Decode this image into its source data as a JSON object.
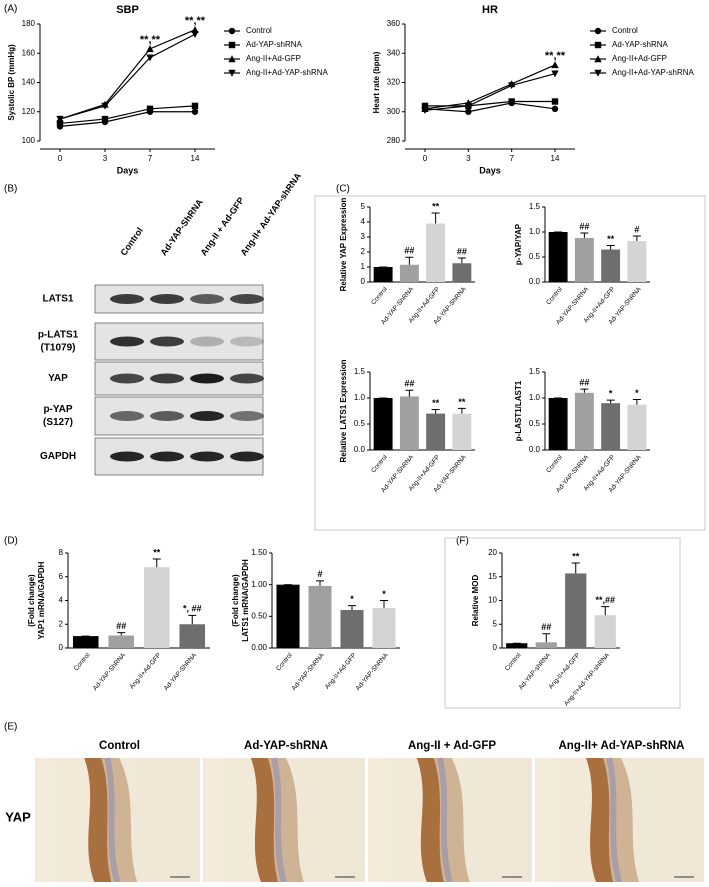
{
  "panels": {
    "A": "(A)",
    "B": "(B)",
    "C": "(C)",
    "D": "(D)",
    "E": "(E)",
    "F": "(F)"
  },
  "chart_data": [
    {
      "type": "line",
      "title": "SBP",
      "xlabel": "Days",
      "ylabel": [
        "Systolic BP (mmHg)"
      ],
      "categories": [
        "0",
        "3",
        "7",
        "14"
      ],
      "ylim": [
        100,
        180
      ],
      "yticks": [
        100,
        120,
        140,
        160,
        180
      ],
      "legend": "right",
      "labels": [
        null,
        null,
        "**,**",
        "**,**"
      ],
      "series": [
        {
          "name": "Control",
          "color": "#000000",
          "marker": "circle",
          "values": [
            110,
            113,
            120,
            120
          ]
        },
        {
          "name": "Ad-YAP-shRNA",
          "color": "#000000",
          "marker": "square",
          "values": [
            112,
            115,
            122,
            124
          ]
        },
        {
          "name": "Ang-II+Ad-GFP",
          "color": "#000000",
          "marker": "triangle-up",
          "values": [
            115,
            125,
            163,
            176
          ]
        },
        {
          "name": "Ang-II+Ad-YAP-shRNA",
          "color": "#000000",
          "marker": "triangle-down",
          "values": [
            115,
            124,
            157,
            173
          ]
        }
      ]
    },
    {
      "type": "line",
      "title": "HR",
      "xlabel": "Days",
      "ylabel": [
        "Heart rate (bpm)"
      ],
      "categories": [
        "0",
        "3",
        "7",
        "14"
      ],
      "ylim": [
        280,
        360
      ],
      "yticks": [
        280,
        300,
        320,
        340,
        360
      ],
      "legend": "right",
      "labels": [
        null,
        null,
        null,
        "**,**"
      ],
      "series": [
        {
          "name": "Control",
          "color": "#000000",
          "marker": "circle",
          "values": [
            302,
            300,
            306,
            302
          ]
        },
        {
          "name": "Ad-YAP-shRNA",
          "color": "#000000",
          "marker": "square",
          "values": [
            304,
            304,
            307,
            307
          ]
        },
        {
          "name": "Ang-II+Ad-GFP",
          "color": "#000000",
          "marker": "triangle-up",
          "values": [
            302,
            306,
            319,
            332
          ]
        },
        {
          "name": "Ang-II+Ad-YAP-shRNA",
          "color": "#000000",
          "marker": "triangle-down",
          "values": [
            301,
            304,
            318,
            326
          ]
        }
      ]
    },
    {
      "type": "bar",
      "ylabel": [
        "Relative YAP Expression"
      ],
      "categories": [
        "Control",
        "Ad-YAP-ShRNA",
        "Ang-II+Ad-GFP",
        "Ad-YAP-ShRNA"
      ],
      "values": [
        1,
        1.15,
        3.9,
        1.25
      ],
      "errors": [
        0,
        0.5,
        0.7,
        0.35
      ],
      "labels": [
        null,
        "##",
        "**",
        "##"
      ],
      "colors": [
        "#000000",
        "#a0a0a0",
        "#d4d4d4",
        "#6e6e6e"
      ],
      "ylim": [
        0,
        5
      ],
      "yticks": [
        0,
        1,
        2,
        3,
        4,
        5
      ]
    },
    {
      "type": "bar",
      "ylabel": [
        "p-YAP/YAP"
      ],
      "categories": [
        "Control",
        "Ad-YAP-ShRNA",
        "Ang-II+Ad-GFP",
        "Ad-YAP-ShRNA"
      ],
      "values": [
        1,
        0.88,
        0.65,
        0.82
      ],
      "errors": [
        0,
        0.1,
        0.08,
        0.1
      ],
      "labels": [
        null,
        "##",
        "**",
        "#"
      ],
      "colors": [
        "#000000",
        "#a0a0a0",
        "#6e6e6e",
        "#d4d4d4"
      ],
      "ylim": [
        0,
        1.5
      ],
      "yticks": [
        {
          "value": 0,
          "label": "0.0"
        },
        0.5,
        {
          "value": 1,
          "label": "1.0"
        },
        1.5
      ]
    },
    {
      "type": "bar",
      "ylabel": [
        "Relative LATS1 Expression"
      ],
      "categories": [
        "Control",
        "Ad-YAP-ShRNA",
        "Ang-II+Ad-GFP",
        "Ad-YAP-ShRNA"
      ],
      "values": [
        1,
        1.03,
        0.7,
        0.7
      ],
      "errors": [
        0,
        0.12,
        0.08,
        0.1
      ],
      "labels": [
        null,
        "##",
        "**",
        "**"
      ],
      "colors": [
        "#000000",
        "#a0a0a0",
        "#6e6e6e",
        "#d4d4d4"
      ],
      "ylim": [
        0,
        1.5
      ],
      "yticks": [
        {
          "value": 0,
          "label": "0.0"
        },
        0.5,
        {
          "value": 1,
          "label": "1.0"
        },
        1.5
      ]
    },
    {
      "type": "bar",
      "ylabel": [
        "p-LAST1/LAST1"
      ],
      "categories": [
        "Control",
        "Ad-YAP-ShRNA",
        "Ang-II+Ad-GFP",
        "Ad-YAP-ShRNA"
      ],
      "values": [
        1,
        1.1,
        0.9,
        0.87
      ],
      "errors": [
        0,
        0.07,
        0.06,
        0.1
      ],
      "labels": [
        null,
        "##",
        "*",
        "*"
      ],
      "colors": [
        "#000000",
        "#a0a0a0",
        "#6e6e6e",
        "#d4d4d4"
      ],
      "ylim": [
        0,
        1.5
      ],
      "yticks": [
        {
          "value": 0,
          "label": "0.0"
        },
        0.5,
        {
          "value": 1,
          "label": "1.0"
        },
        1.5
      ]
    },
    {
      "type": "bar",
      "ylabel": [
        "YAP1 mRNA/GAPDH",
        "(Fold change)"
      ],
      "categories": [
        "Control",
        "Ad-YAP-ShRNA",
        "Ang-II+Ad-GFP",
        "Ad-YAP-ShRNA"
      ],
      "values": [
        1,
        1.05,
        6.8,
        2.0
      ],
      "errors": [
        0,
        0.25,
        0.7,
        0.75
      ],
      "labels": [
        null,
        "##",
        "**",
        "*, ##"
      ],
      "colors": [
        "#000000",
        "#a0a0a0",
        "#d4d4d4",
        "#6e6e6e"
      ],
      "ylim": [
        0,
        8
      ],
      "yticks": [
        0,
        2,
        4,
        6,
        8
      ]
    },
    {
      "type": "bar",
      "ylabel": [
        "LATS1 mRNA/GAPDH",
        "(Fold change)"
      ],
      "categories": [
        "Control",
        "Ad-YAP-ShRNA",
        "Ang-II+Ad-GFP",
        "Ad-YAP-ShRNA"
      ],
      "values": [
        1,
        0.98,
        0.6,
        0.63
      ],
      "errors": [
        0,
        0.08,
        0.07,
        0.12
      ],
      "labels": [
        null,
        "#",
        "*",
        "*"
      ],
      "colors": [
        "#000000",
        "#a0a0a0",
        "#6e6e6e",
        "#d4d4d4"
      ],
      "ylim": [
        0,
        1.5
      ],
      "yticks": [
        {
          "value": 0,
          "label": "0.00"
        },
        {
          "value": 0.5,
          "label": "0.50"
        },
        {
          "value": 1,
          "label": "1.00"
        },
        {
          "value": 1.5,
          "label": "1.50"
        }
      ]
    },
    {
      "type": "bar",
      "ylabel": [
        "Relative MOD"
      ],
      "categories": [
        "Control",
        "Ad-YAP-shRNA",
        "Ang-II+Ad-GFP",
        "Ang-II+Ad-YAP-shRNA"
      ],
      "values": [
        1,
        1.2,
        15.7,
        6.9
      ],
      "errors": [
        0,
        1.8,
        2.2,
        1.8
      ],
      "labels": [
        null,
        "##",
        "**",
        "**,##"
      ],
      "colors": [
        "#000000",
        "#a0a0a0",
        "#6e6e6e",
        "#d4d4d4"
      ],
      "ylim": [
        0,
        20
      ],
      "yticks": [
        0,
        5,
        10,
        15,
        20
      ]
    }
  ],
  "blot": {
    "columns": [
      "Control",
      "Ad-YAP-ShRNA",
      "Ang-II + Ad-GFP",
      "Ang-II+ Ad-YAP-shRNA"
    ],
    "rows": [
      [
        "LATS1"
      ],
      [
        "p-LATS1",
        "(T1079)"
      ],
      [
        "YAP"
      ],
      [
        "p-YAP",
        "(S127)"
      ],
      [
        "GAPDH"
      ]
    ]
  },
  "histology": {
    "titles": [
      "Control",
      "Ad-YAP-shRNA",
      "Ang-II + Ad-GFP",
      "Ang-II+ Ad-YAP-shRNA"
    ],
    "row_label": "YAP"
  }
}
